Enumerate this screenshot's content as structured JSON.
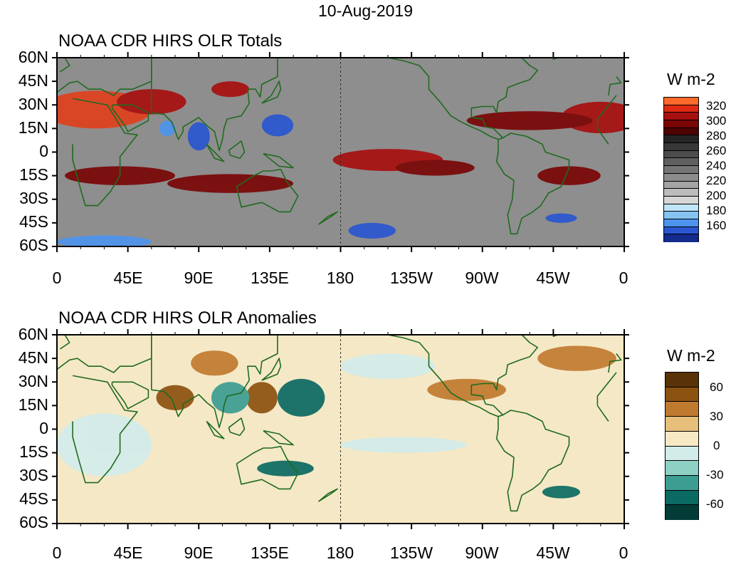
{
  "date": "10-Aug-2019",
  "panels": [
    {
      "id": "totals",
      "title": "NOAA CDR HIRS OLR Totals",
      "units": "W m-2",
      "colorbar_labels": [
        "320",
        "300",
        "280",
        "260",
        "240",
        "220",
        "200",
        "180",
        "160"
      ],
      "colorbar_colors": [
        "#ff6a2a",
        "#e02a14",
        "#a81010",
        "#7a0606",
        "#4d0303",
        "#242424",
        "#383838",
        "#4c4c4c",
        "#606060",
        "#767676",
        "#8c8c8c",
        "#a4a4a4",
        "#bcbcbc",
        "#d6d6d6",
        "#bfe6f7",
        "#85c4f2",
        "#4d94ee",
        "#2a56d0",
        "#142a8c"
      ],
      "background": "#8e8e8e",
      "blobs": [
        {
          "lon": 25,
          "lat": 27,
          "rx": 35,
          "ry": 12,
          "c": "#e0401e"
        },
        {
          "lon": -15,
          "lat": 22,
          "rx": 25,
          "ry": 10,
          "c": "#a81010"
        },
        {
          "lon": 60,
          "lat": 32,
          "rx": 22,
          "ry": 8,
          "c": "#a81010"
        },
        {
          "lon": 110,
          "lat": 40,
          "rx": 12,
          "ry": 5,
          "c": "#a81010"
        },
        {
          "lon": 40,
          "lat": -15,
          "rx": 35,
          "ry": 6,
          "c": "#7a0606"
        },
        {
          "lon": 110,
          "lat": -20,
          "rx": 40,
          "ry": 6,
          "c": "#7a0606"
        },
        {
          "lon": -150,
          "lat": -5,
          "rx": 35,
          "ry": 7,
          "c": "#a81010"
        },
        {
          "lon": -120,
          "lat": -10,
          "rx": 25,
          "ry": 5,
          "c": "#7a0606"
        },
        {
          "lon": -60,
          "lat": 20,
          "rx": 40,
          "ry": 6,
          "c": "#7a0606"
        },
        {
          "lon": -35,
          "lat": -15,
          "rx": 20,
          "ry": 6,
          "c": "#7a0606"
        },
        {
          "lon": 140,
          "lat": 17,
          "rx": 10,
          "ry": 7,
          "c": "#2a56d0"
        },
        {
          "lon": 90,
          "lat": 10,
          "rx": 7,
          "ry": 9,
          "c": "#2a56d0"
        },
        {
          "lon": 70,
          "lat": 15,
          "rx": 5,
          "ry": 5,
          "c": "#4d94ee"
        },
        {
          "lon": -160,
          "lat": -50,
          "rx": 15,
          "ry": 5,
          "c": "#2a56d0"
        },
        {
          "lon": -40,
          "lat": -42,
          "rx": 10,
          "ry": 3,
          "c": "#2a56d0"
        },
        {
          "lon": 30,
          "lat": -57,
          "rx": 30,
          "ry": 4,
          "c": "#4d94ee"
        }
      ]
    },
    {
      "id": "anomalies",
      "title": "NOAA CDR HIRS OLR Anomalies",
      "units": "W m-2",
      "colorbar_labels": [
        "60",
        "30",
        "0",
        "-30",
        "-60"
      ],
      "colorbar_colors": [
        "#5a3208",
        "#8c5210",
        "#c07a30",
        "#e6bf7a",
        "#f7e9c4",
        "#d2ecea",
        "#8fd0c4",
        "#3c9d92",
        "#0b6a62",
        "#033c36"
      ],
      "background": "#f5e8c6",
      "blobs": [
        {
          "lon": 75,
          "lat": 20,
          "rx": 12,
          "ry": 8,
          "c": "#8c5210"
        },
        {
          "lon": 130,
          "lat": 20,
          "rx": 10,
          "ry": 10,
          "c": "#8c5210"
        },
        {
          "lon": 100,
          "lat": 42,
          "rx": 15,
          "ry": 8,
          "c": "#c07a30"
        },
        {
          "lon": 155,
          "lat": 20,
          "rx": 15,
          "ry": 12,
          "c": "#0b6a62"
        },
        {
          "lon": 110,
          "lat": 20,
          "rx": 12,
          "ry": 10,
          "c": "#3c9d92"
        },
        {
          "lon": 145,
          "lat": -25,
          "rx": 18,
          "ry": 5,
          "c": "#0b6a62"
        },
        {
          "lon": -150,
          "lat": 40,
          "rx": 30,
          "ry": 8,
          "c": "#d2ecea"
        },
        {
          "lon": -100,
          "lat": 25,
          "rx": 25,
          "ry": 7,
          "c": "#c07a30"
        },
        {
          "lon": -30,
          "lat": 45,
          "rx": 25,
          "ry": 8,
          "c": "#c07a30"
        },
        {
          "lon": -40,
          "lat": -40,
          "rx": 12,
          "ry": 4,
          "c": "#0b6a62"
        },
        {
          "lon": -140,
          "lat": -10,
          "rx": 40,
          "ry": 5,
          "c": "#d2ecea"
        },
        {
          "lon": 30,
          "lat": -10,
          "rx": 30,
          "ry": 20,
          "c": "#d2ecea"
        }
      ]
    }
  ],
  "y_labels": [
    "60N",
    "45N",
    "30N",
    "15N",
    "0",
    "15S",
    "30S",
    "45S",
    "60S"
  ],
  "x_labels": [
    "0",
    "45E",
    "90E",
    "135E",
    "180",
    "135W",
    "90W",
    "45W",
    "0"
  ],
  "coastline_color": "#1f6b1f",
  "land_outlines": [
    [
      [
        -17,
        15
      ],
      [
        -10,
        5
      ],
      [
        10,
        5
      ],
      [
        10,
        -5
      ],
      [
        14,
        -20
      ],
      [
        18,
        -34
      ],
      [
        26,
        -34
      ],
      [
        34,
        -25
      ],
      [
        40,
        -15
      ],
      [
        40,
        -3
      ],
      [
        51,
        11
      ],
      [
        43,
        12
      ],
      [
        32,
        30
      ],
      [
        10,
        34
      ],
      [
        -5,
        36
      ],
      [
        -17,
        21
      ],
      [
        -17,
        15
      ]
    ],
    [
      [
        -10,
        36
      ],
      [
        -9,
        43
      ],
      [
        -2,
        44
      ],
      [
        -5,
        48
      ],
      [
        2,
        51
      ],
      [
        8,
        55
      ],
      [
        5,
        60
      ],
      [
        30,
        60
      ],
      [
        40,
        62
      ],
      [
        60,
        60
      ],
      [
        60,
        45
      ],
      [
        48,
        40
      ],
      [
        40,
        40
      ],
      [
        36,
        36
      ],
      [
        28,
        40
      ],
      [
        20,
        40
      ],
      [
        13,
        45
      ],
      [
        8,
        44
      ],
      [
        0,
        38
      ],
      [
        -10,
        36
      ]
    ],
    [
      [
        35,
        30
      ],
      [
        48,
        30
      ],
      [
        58,
        25
      ],
      [
        58,
        20
      ],
      [
        45,
        13
      ],
      [
        43,
        17
      ],
      [
        35,
        28
      ],
      [
        35,
        30
      ]
    ],
    [
      [
        60,
        25
      ],
      [
        68,
        24
      ],
      [
        73,
        19
      ],
      [
        77,
        8
      ],
      [
        80,
        13
      ],
      [
        80,
        16
      ],
      [
        90,
        22
      ],
      [
        95,
        17
      ],
      [
        100,
        13
      ],
      [
        103,
        1
      ],
      [
        105,
        8
      ],
      [
        106,
        15
      ],
      [
        108,
        21
      ],
      [
        117,
        23
      ],
      [
        122,
        31
      ],
      [
        121,
        40
      ],
      [
        126,
        40
      ],
      [
        129,
        35
      ],
      [
        130,
        43
      ],
      [
        140,
        48
      ],
      [
        140,
        60
      ],
      [
        60,
        60
      ],
      [
        60,
        25
      ]
    ],
    [
      [
        114,
        -22
      ],
      [
        117,
        -35
      ],
      [
        130,
        -32
      ],
      [
        141,
        -38
      ],
      [
        148,
        -38
      ],
      [
        153,
        -28
      ],
      [
        146,
        -19
      ],
      [
        142,
        -11
      ],
      [
        136,
        -12
      ],
      [
        131,
        -12
      ],
      [
        125,
        -15
      ],
      [
        114,
        -22
      ]
    ],
    [
      [
        95,
        5
      ],
      [
        100,
        0
      ],
      [
        106,
        -6
      ],
      [
        100,
        -4
      ],
      [
        95,
        5
      ]
    ],
    [
      [
        109,
        1
      ],
      [
        117,
        7
      ],
      [
        119,
        0
      ],
      [
        116,
        -4
      ],
      [
        110,
        -2
      ],
      [
        109,
        1
      ]
    ],
    [
      [
        131,
        -1
      ],
      [
        141,
        -3
      ],
      [
        150,
        -10
      ],
      [
        141,
        -9
      ],
      [
        131,
        -1
      ]
    ],
    [
      [
        130,
        31
      ],
      [
        140,
        35
      ],
      [
        142,
        40
      ],
      [
        141,
        45
      ],
      [
        136,
        36
      ],
      [
        130,
        31
      ]
    ],
    [
      [
        -168,
        60
      ],
      [
        -150,
        60
      ],
      [
        -140,
        58
      ],
      [
        -130,
        55
      ],
      [
        -124,
        48
      ],
      [
        -124,
        40
      ],
      [
        -117,
        32
      ],
      [
        -110,
        23
      ],
      [
        -105,
        20
      ],
      [
        -97,
        16
      ],
      [
        -92,
        14
      ],
      [
        -85,
        10
      ],
      [
        -80,
        8
      ],
      [
        -77,
        9
      ],
      [
        -83,
        15
      ],
      [
        -88,
        16
      ],
      [
        -90,
        21
      ],
      [
        -97,
        22
      ],
      [
        -97,
        28
      ],
      [
        -90,
        29
      ],
      [
        -83,
        29
      ],
      [
        -81,
        25
      ],
      [
        -80,
        32
      ],
      [
        -75,
        35
      ],
      [
        -74,
        41
      ],
      [
        -66,
        44
      ],
      [
        -60,
        46
      ],
      [
        -55,
        52
      ],
      [
        -60,
        55
      ],
      [
        -65,
        60
      ],
      [
        -168,
        60
      ]
    ],
    [
      [
        -80,
        8
      ],
      [
        -77,
        9
      ],
      [
        -72,
        12
      ],
      [
        -62,
        10
      ],
      [
        -52,
        5
      ],
      [
        -50,
        0
      ],
      [
        -35,
        -5
      ],
      [
        -35,
        -10
      ],
      [
        -40,
        -22
      ],
      [
        -48,
        -26
      ],
      [
        -53,
        -34
      ],
      [
        -58,
        -38
      ],
      [
        -65,
        -42
      ],
      [
        -68,
        -52
      ],
      [
        -72,
        -52
      ],
      [
        -74,
        -40
      ],
      [
        -71,
        -30
      ],
      [
        -70,
        -18
      ],
      [
        -76,
        -14
      ],
      [
        -81,
        -6
      ],
      [
        -80,
        0
      ],
      [
        -80,
        8
      ]
    ],
    [
      [
        -45,
        60
      ],
      [
        -42,
        60
      ],
      [
        -45,
        59
      ],
      [
        -45,
        60
      ]
    ],
    [
      [
        166,
        -46
      ],
      [
        174,
        -41
      ],
      [
        178,
        -38
      ],
      [
        172,
        -41
      ],
      [
        166,
        -46
      ]
    ]
  ]
}
